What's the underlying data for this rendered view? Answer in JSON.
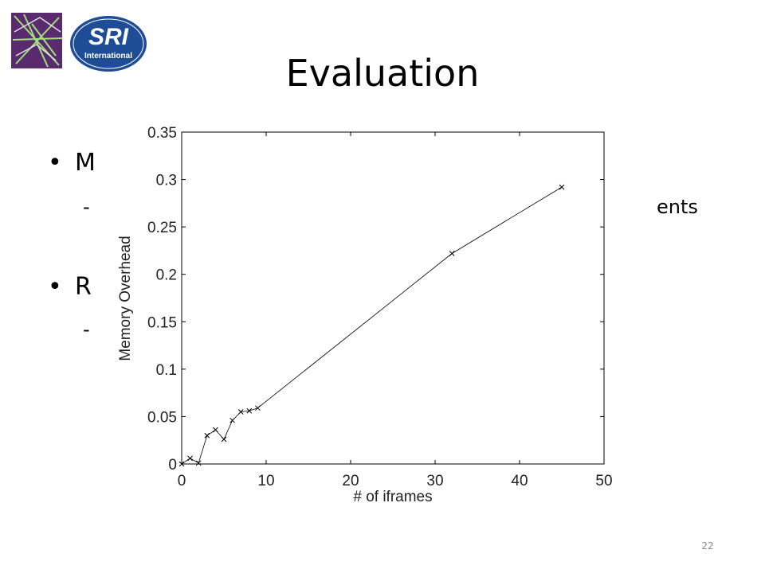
{
  "slide": {
    "title": "Evaluation",
    "bullet_1": "M",
    "bullet_1_sub": "ents",
    "bullet_2": "R",
    "logo_text_1": "SRI",
    "logo_text_2": "International",
    "page_number": "22"
  },
  "chart_data": {
    "type": "line",
    "marker": "x",
    "color": "#000000",
    "x": [
      0,
      1,
      2,
      3,
      4,
      5,
      6,
      7,
      8,
      9,
      32,
      45
    ],
    "values": [
      0,
      0.006,
      0.001,
      0.03,
      0.036,
      0.026,
      0.046,
      0.055,
      0.056,
      0.059,
      0.222,
      0.292
    ],
    "xlabel": "# of iframes",
    "ylabel": "Memory Overhead",
    "xlim": [
      0,
      50
    ],
    "ylim": [
      0,
      0.35
    ],
    "xticks": [
      0,
      10,
      20,
      30,
      40,
      50
    ],
    "yticks": [
      0,
      0.05,
      0.1,
      0.15,
      0.2,
      0.25,
      0.3,
      0.35
    ],
    "grid": false
  }
}
